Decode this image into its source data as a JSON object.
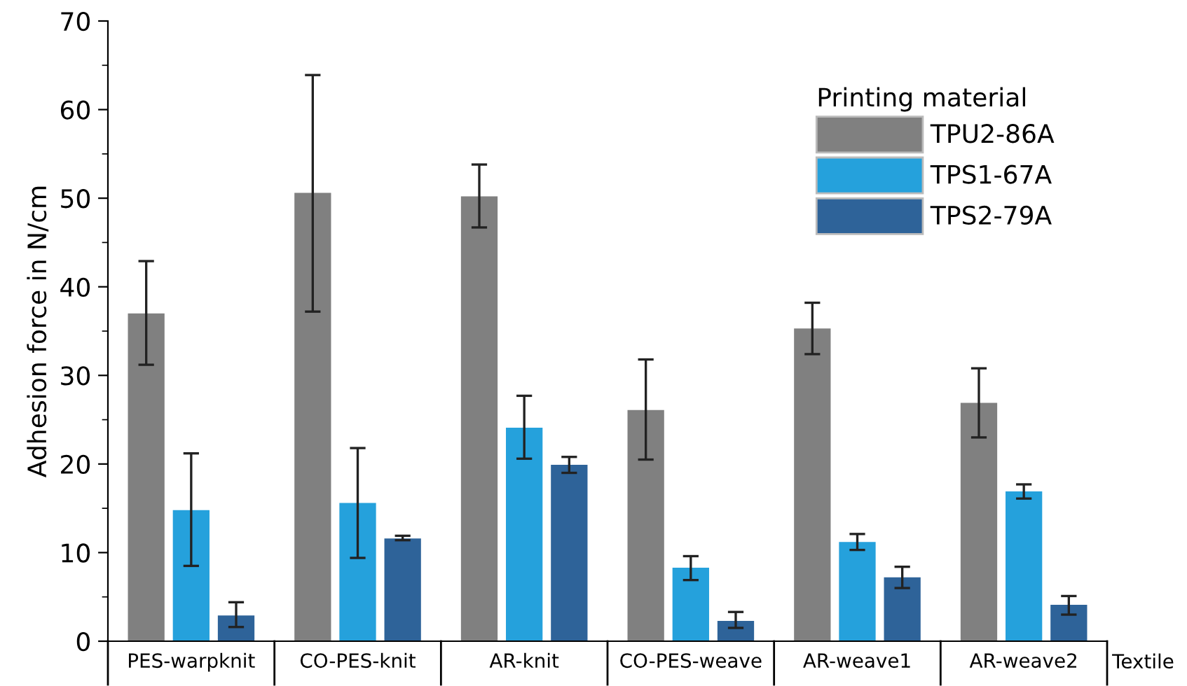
{
  "chart_data": {
    "type": "bar",
    "ylabel": "Adhesion force in N/cm",
    "xlabel": "Textile",
    "legend_title": "Printing material",
    "categories": [
      "PES-warpknit",
      "CO-PES-knit",
      "AR-knit",
      "CO-PES-weave",
      "AR-weave1",
      "AR-weave2"
    ],
    "series": [
      {
        "name": "TPU2-86A",
        "color": "#808080",
        "values": [
          37.0,
          50.6,
          50.2,
          26.1,
          35.3,
          26.9
        ],
        "errors": [
          [
            31.2,
            42.9
          ],
          [
            37.2,
            63.9
          ],
          [
            46.7,
            53.8
          ],
          [
            20.5,
            31.8
          ],
          [
            32.4,
            38.2
          ],
          [
            23.0,
            30.8
          ]
        ]
      },
      {
        "name": "TPS1-67A",
        "color": "#25a1dc",
        "values": [
          14.8,
          15.6,
          24.1,
          8.3,
          11.2,
          16.9
        ],
        "errors": [
          [
            8.5,
            21.2
          ],
          [
            9.4,
            21.8
          ],
          [
            20.6,
            27.7
          ],
          [
            6.9,
            9.6
          ],
          [
            10.3,
            12.1
          ],
          [
            16.1,
            17.7
          ]
        ]
      },
      {
        "name": "TPS2-79A",
        "color": "#2e6399",
        "values": [
          2.9,
          11.6,
          19.9,
          2.3,
          7.2,
          4.1
        ],
        "errors": [
          [
            1.6,
            4.4
          ],
          [
            11.4,
            11.9
          ],
          [
            19.0,
            20.8
          ],
          [
            1.5,
            3.3
          ],
          [
            6.0,
            8.4
          ],
          [
            3.0,
            5.1
          ]
        ]
      }
    ],
    "ylim": [
      0,
      70
    ],
    "yticks": [
      0,
      10,
      20,
      30,
      40,
      50,
      60,
      70
    ],
    "grid": false,
    "legend": "top right"
  }
}
